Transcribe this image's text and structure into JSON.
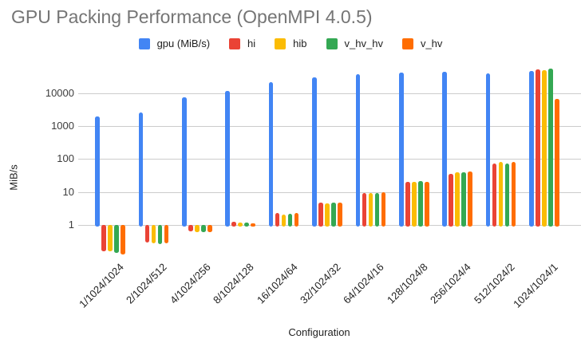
{
  "chart_data": {
    "type": "bar",
    "title": "GPU Packing Performance (OpenMPI 4.0.5)",
    "xlabel": "Configuration",
    "ylabel": "MiB/s",
    "y_scale": "log",
    "y_ticks": [
      "1",
      "10",
      "100",
      "1000",
      "10000"
    ],
    "ylim": [
      0.1,
      60000
    ],
    "grid": true,
    "legend_position": "top",
    "categories": [
      "1/1024/1024",
      "2/1024/512",
      "4/1024/256",
      "8/1024/128",
      "16/1024/64",
      "32/1024/32",
      "64/1024/16",
      "128/1024/8",
      "256/1024/4",
      "512/1024/2",
      "1024/1024/1"
    ],
    "series": [
      {
        "name": "gpu (MiB/s)",
        "color": "#4285F4",
        "values": [
          2000,
          2600,
          7600,
          11500,
          22000,
          30000,
          37500,
          41500,
          44500,
          40000,
          48000
        ]
      },
      {
        "name": "hi",
        "color": "#EA4335",
        "values": [
          0.16,
          0.3,
          0.64,
          1.25,
          2.3,
          4.8,
          9.5,
          20,
          35,
          73,
          53000
        ]
      },
      {
        "name": "hib",
        "color": "#FBBC04",
        "values": [
          0.155,
          0.27,
          0.62,
          1.15,
          2.1,
          4.5,
          9.4,
          20,
          40,
          84,
          51000
        ]
      },
      {
        "name": "v_hv_hv",
        "color": "#34A853",
        "values": [
          0.14,
          0.26,
          0.62,
          1.2,
          2.2,
          4.7,
          9.5,
          21,
          40,
          73,
          55000
        ]
      },
      {
        "name": "v_hv",
        "color": "#FF6D01",
        "values": [
          0.13,
          0.27,
          0.6,
          1.1,
          2.3,
          4.8,
          9.8,
          20,
          41,
          80,
          6700
        ]
      }
    ]
  },
  "colors": {
    "title_text": "#757575",
    "tick_text": "#3c3c3c",
    "axis_title_text": "#222222",
    "gridline": "#cccccc",
    "background": "#ffffff"
  }
}
